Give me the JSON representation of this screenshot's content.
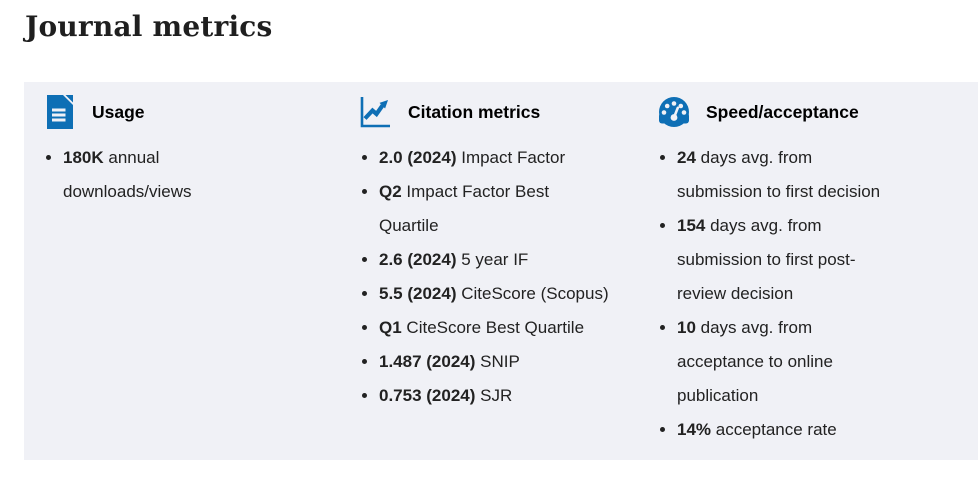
{
  "page": {
    "title": "Journal metrics"
  },
  "colors": {
    "accent_blue": "#0E6FB5",
    "card_background": "#F0F1F6",
    "body_text": "#222222",
    "heading_text": "#000000",
    "title_text": "#1F1F1F",
    "page_background": "#FFFFFF"
  },
  "card": {
    "columns": [
      {
        "title": "Usage",
        "icon": "document-icon",
        "items": [
          {
            "bold": "180K",
            "text": "annual\ndownloads/views"
          }
        ]
      },
      {
        "title": "Citation metrics",
        "icon": "line-chart-icon",
        "items": [
          {
            "bold": "2.0 (2024)",
            "text": "Impact Factor"
          },
          {
            "bold": "Q2",
            "text": "Impact Factor Best\nQuartile"
          },
          {
            "bold": "2.6 (2024)",
            "text": "5 year IF"
          },
          {
            "bold": "5.5 (2024)",
            "text": "CiteScore (Scopus)"
          },
          {
            "bold": "Q1",
            "text": "CiteScore Best Quartile"
          },
          {
            "bold": "1.487 (2024)",
            "text": "SNIP"
          },
          {
            "bold": "0.753 (2024)",
            "text": "SJR"
          }
        ]
      },
      {
        "title": "Speed/acceptance",
        "icon": "speedometer-icon",
        "items": [
          {
            "bold": "24",
            "text": "days avg. from\nsubmission to first decision"
          },
          {
            "bold": "154",
            "text": "days avg. from\nsubmission to first post-\nreview decision"
          },
          {
            "bold": "10",
            "text": "days avg. from\nacceptance to online\npublication"
          },
          {
            "bold": "14%",
            "text": "acceptance rate"
          }
        ]
      }
    ]
  }
}
